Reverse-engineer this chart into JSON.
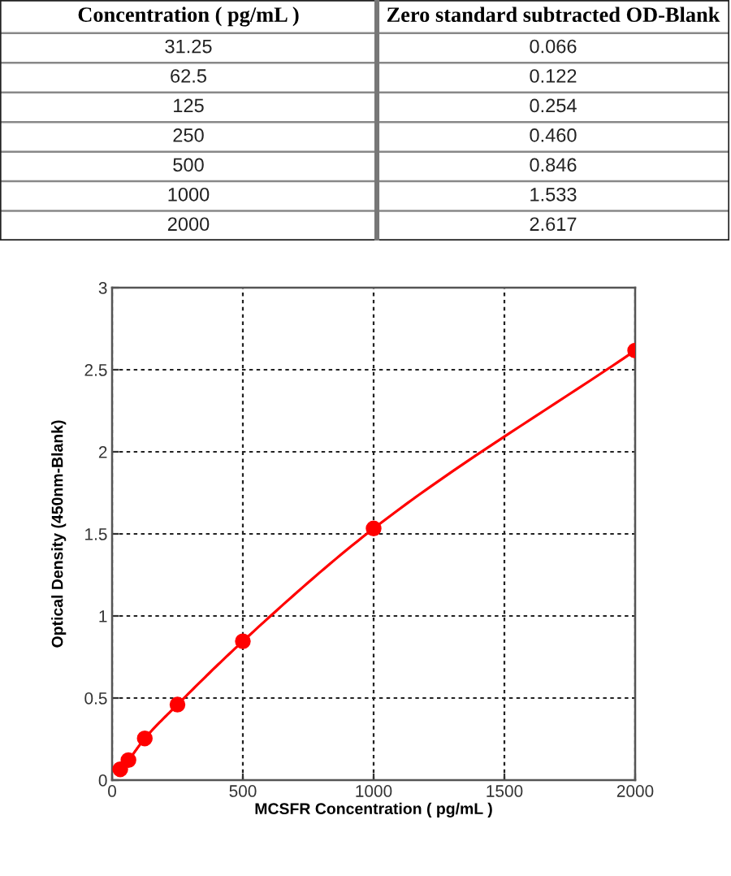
{
  "chart_data": [
    {
      "type": "other",
      "annotations": [
        "Concentration ( pg/mL )",
        "Zero standard subtracted OD-Blank"
      ],
      "categories": [
        "31.25",
        "62.5",
        "125",
        "250",
        "500",
        "1000",
        "2000"
      ],
      "values": [
        0.066,
        0.122,
        0.254,
        0.46,
        0.846,
        1.533,
        2.617
      ],
      "value_labels": [
        "0.066",
        "0.122",
        "0.254",
        "0.460",
        "0.846",
        "1.533",
        "2.617"
      ]
    },
    {
      "type": "line",
      "xlabel": "MCSFR Concentration ( pg/mL )",
      "ylabel": "Optical Density (450nm-Blank)",
      "x": [
        31.25,
        62.5,
        125,
        250,
        500,
        1000,
        2000
      ],
      "values": [
        0.066,
        0.122,
        0.254,
        0.46,
        0.846,
        1.533,
        2.617
      ],
      "color": "#ff0000",
      "marker": "circle",
      "line_style": "solid",
      "xlim": [
        0,
        2000
      ],
      "xticks": [
        0,
        500,
        1000,
        1500,
        2000
      ],
      "ylim": [
        0,
        3
      ],
      "yticks": [
        0,
        0.5,
        1,
        1.5,
        2,
        2.5,
        3
      ],
      "grid": true
    }
  ]
}
